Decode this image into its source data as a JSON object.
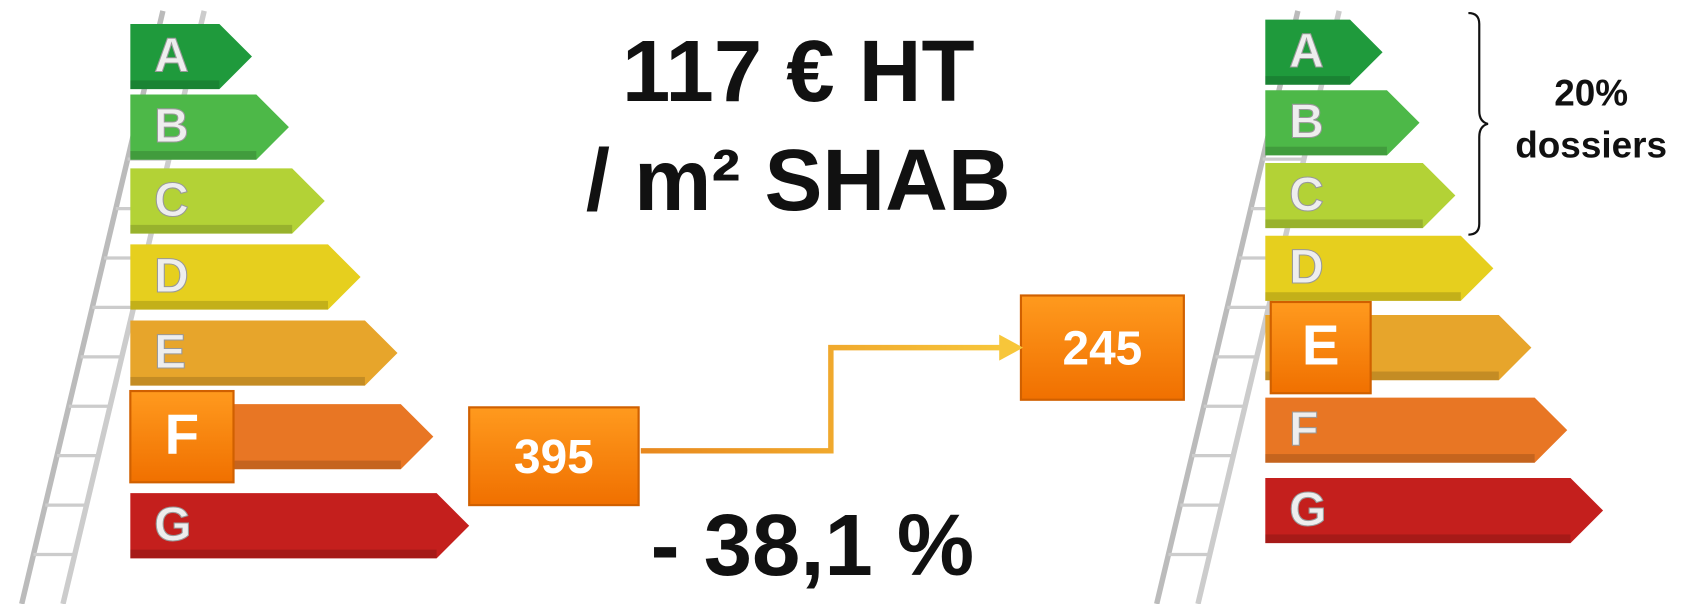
{
  "headline": {
    "line1": "117 € HT",
    "line2": "/ m² SHAB"
  },
  "before": {
    "classes": [
      "A",
      "B",
      "C",
      "D",
      "E",
      "F",
      "G"
    ],
    "current_class": "F",
    "value": 395
  },
  "after": {
    "classes": [
      "A",
      "B",
      "C",
      "D",
      "E",
      "F",
      "G"
    ],
    "current_class": "E",
    "value": 245,
    "bracket_label": [
      "20%",
      "dossiers"
    ]
  },
  "change": "- 38,1 %"
}
